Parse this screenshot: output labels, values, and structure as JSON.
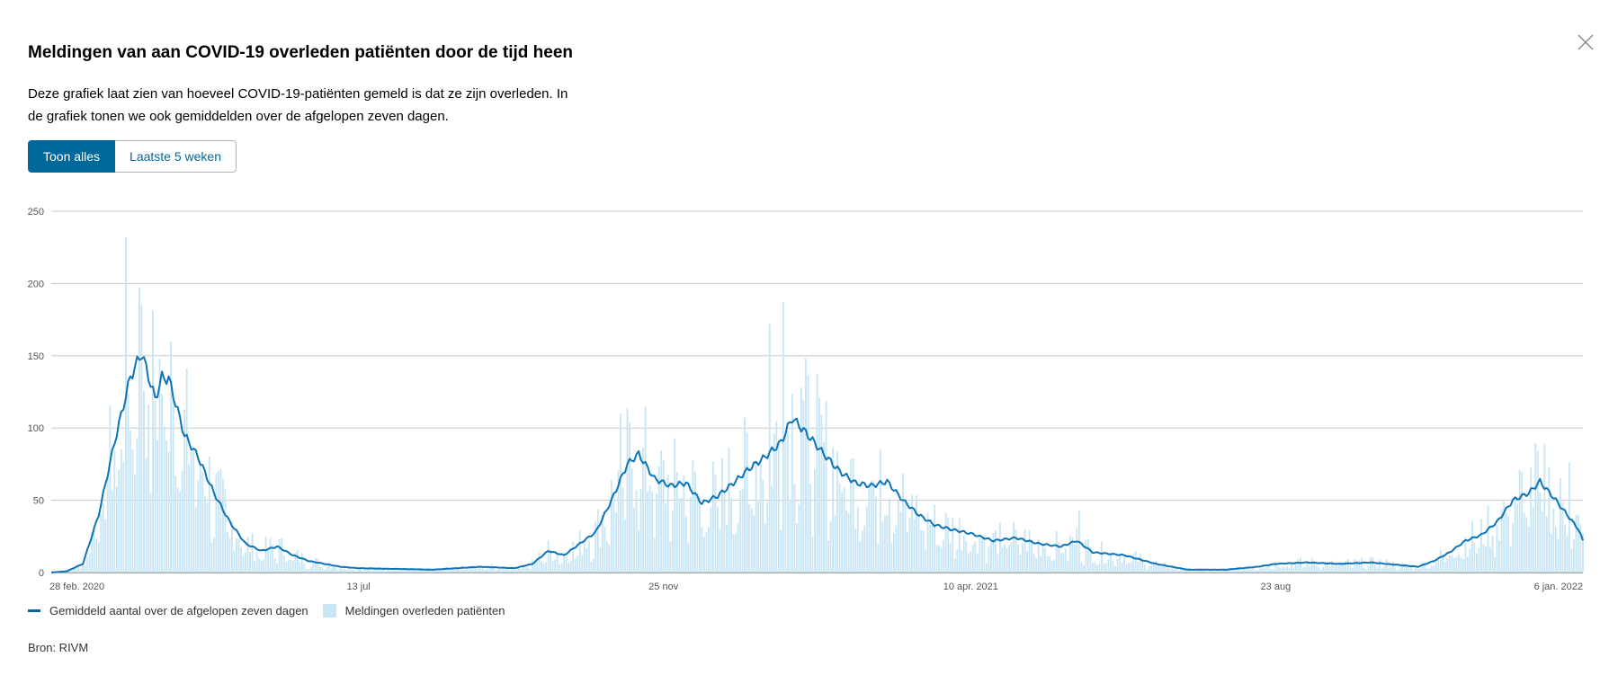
{
  "header": {
    "title": "Meldingen van aan COVID-19 overleden patiënten door de tijd heen",
    "description": "Deze grafiek laat zien van hoeveel COVID-19-patiënten gemeld is dat ze zijn overleden. In de grafiek tonen we ook gemiddelden over de afgelopen zeven dagen.",
    "close_icon": "close-icon"
  },
  "toggle": {
    "all_label": "Toon alles",
    "last5_label": "Laatste 5 weken",
    "active_color": "#01689b"
  },
  "legend": {
    "line_label": "Gemiddeld aantal over de afgelopen zeven dagen",
    "bar_label": "Meldingen overleden patiënten"
  },
  "footer": {
    "source": "Bron: RIVM"
  },
  "chart_data": {
    "type": "bar",
    "x_start": "2020-02-28",
    "x_end": "2022-01-06",
    "ylim": [
      0,
      250
    ],
    "y_ticks": [
      0,
      50,
      100,
      150,
      200,
      250
    ],
    "x_ticks": [
      {
        "date": "2020-02-28",
        "label": "28 feb. 2020"
      },
      {
        "date": "2020-07-13",
        "label": "13 jul"
      },
      {
        "date": "2020-11-25",
        "label": "25 nov"
      },
      {
        "date": "2021-04-10",
        "label": "10 apr. 2021"
      },
      {
        "date": "2021-08-23",
        "label": "23 aug"
      },
      {
        "date": "2022-01-06",
        "label": "6 jan. 2022"
      }
    ],
    "grid": true,
    "legend_position": "bottom-left",
    "bar_color": "#c7e5f4",
    "line_color": "#0e74b8",
    "series": [
      {
        "name": "Gemiddeld aantal over de afgelopen zeven dagen",
        "type": "line",
        "points": [
          [
            "2020-02-28",
            0
          ],
          [
            "2020-03-06",
            1
          ],
          [
            "2020-03-13",
            6
          ],
          [
            "2020-03-20",
            40
          ],
          [
            "2020-03-27",
            90
          ],
          [
            "2020-04-03",
            135
          ],
          [
            "2020-04-08",
            152
          ],
          [
            "2020-04-14",
            120
          ],
          [
            "2020-04-17",
            135
          ],
          [
            "2020-04-20",
            134
          ],
          [
            "2020-04-27",
            95
          ],
          [
            "2020-05-03",
            80
          ],
          [
            "2020-05-10",
            55
          ],
          [
            "2020-05-17",
            35
          ],
          [
            "2020-05-24",
            20
          ],
          [
            "2020-05-31",
            15
          ],
          [
            "2020-06-07",
            18
          ],
          [
            "2020-06-14",
            12
          ],
          [
            "2020-06-21",
            8
          ],
          [
            "2020-07-05",
            4
          ],
          [
            "2020-07-13",
            3
          ],
          [
            "2020-08-15",
            2
          ],
          [
            "2020-09-05",
            4
          ],
          [
            "2020-09-20",
            3
          ],
          [
            "2020-09-28",
            6
          ],
          [
            "2020-10-05",
            15
          ],
          [
            "2020-10-12",
            12
          ],
          [
            "2020-10-19",
            20
          ],
          [
            "2020-10-26",
            28
          ],
          [
            "2020-11-02",
            50
          ],
          [
            "2020-11-09",
            75
          ],
          [
            "2020-11-14",
            82
          ],
          [
            "2020-11-21",
            65
          ],
          [
            "2020-11-28",
            60
          ],
          [
            "2020-12-05",
            62
          ],
          [
            "2020-12-12",
            48
          ],
          [
            "2020-12-19",
            53
          ],
          [
            "2020-12-26",
            62
          ],
          [
            "2021-01-02",
            72
          ],
          [
            "2021-01-09",
            80
          ],
          [
            "2021-01-16",
            90
          ],
          [
            "2021-01-21",
            107
          ],
          [
            "2021-01-28",
            95
          ],
          [
            "2021-02-04",
            82
          ],
          [
            "2021-02-11",
            70
          ],
          [
            "2021-02-18",
            62
          ],
          [
            "2021-02-25",
            60
          ],
          [
            "2021-03-04",
            63
          ],
          [
            "2021-03-11",
            50
          ],
          [
            "2021-03-18",
            40
          ],
          [
            "2021-03-25",
            33
          ],
          [
            "2021-04-01",
            30
          ],
          [
            "2021-04-10",
            27
          ],
          [
            "2021-04-20",
            22
          ],
          [
            "2021-04-30",
            24
          ],
          [
            "2021-05-10",
            20
          ],
          [
            "2021-05-20",
            18
          ],
          [
            "2021-05-27",
            22
          ],
          [
            "2021-06-03",
            14
          ],
          [
            "2021-06-17",
            12
          ],
          [
            "2021-07-01",
            6
          ],
          [
            "2021-07-15",
            2
          ],
          [
            "2021-08-01",
            2
          ],
          [
            "2021-08-15",
            4
          ],
          [
            "2021-08-23",
            6
          ],
          [
            "2021-09-06",
            7
          ],
          [
            "2021-09-20",
            6
          ],
          [
            "2021-10-04",
            7
          ],
          [
            "2021-10-18",
            5
          ],
          [
            "2021-10-25",
            4
          ],
          [
            "2021-11-01",
            8
          ],
          [
            "2021-11-08",
            14
          ],
          [
            "2021-11-15",
            22
          ],
          [
            "2021-11-22",
            26
          ],
          [
            "2021-11-29",
            35
          ],
          [
            "2021-12-06",
            50
          ],
          [
            "2021-12-13",
            55
          ],
          [
            "2021-12-18",
            63
          ],
          [
            "2021-12-25",
            50
          ],
          [
            "2021-12-31",
            38
          ],
          [
            "2022-01-04",
            30
          ],
          [
            "2022-01-06",
            22
          ]
        ]
      },
      {
        "name": "Meldingen overleden patiënten",
        "type": "bar",
        "peaks": [
          [
            "2020-04-01",
            232
          ],
          [
            "2020-04-08",
            185
          ],
          [
            "2020-04-21",
            160
          ],
          [
            "2020-11-06",
            110
          ],
          [
            "2021-01-11",
            172
          ],
          [
            "2021-01-17",
            187
          ],
          [
            "2021-01-25",
            128
          ],
          [
            "2021-03-01",
            85
          ],
          [
            "2021-05-28",
            43
          ],
          [
            "2021-12-17",
            84
          ],
          [
            "2021-12-31",
            76
          ]
        ]
      }
    ]
  }
}
